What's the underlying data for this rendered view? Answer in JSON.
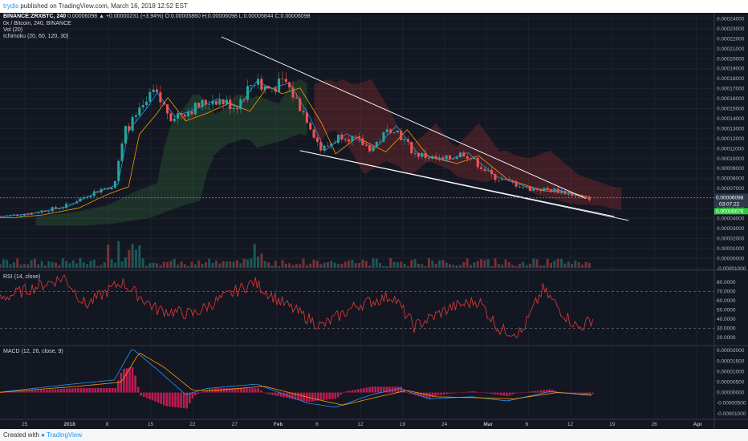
{
  "header": {
    "author": "trydis",
    "published_text": "published on TradingView.com, March 16, 2018 12:52 EST"
  },
  "legend": {
    "symbol": "BINANCE:ZRXBTC, 240",
    "ohlc_text": "0.00006098 ▲ +0.00000231 (+3.94%) O:0.00005860 H:0.00006098 L:0.00005844 C:0.00006098",
    "title": "0x / Bitcoin, 240, BINANCE",
    "vol": "Vol (20)",
    "ichimoku": "Ichimoku (20, 60, 120, 30)",
    "rsi": "RSI (14, close)",
    "macd": "MACD (12, 26, close, 9)"
  },
  "footer": {
    "created_with": "Created with",
    "brand": "TradingView"
  },
  "colors": {
    "background": "#131722",
    "candle_up": "#26a69a",
    "candle_down": "#ef5350",
    "rsi_line": "#e53935",
    "macd_line": "#2196f3",
    "signal_line": "#ff9800",
    "histogram": "#e91e63",
    "trendline": "#ffffff",
    "price_line": "#4caf50"
  },
  "chart_data": [
    {
      "type": "candlestick",
      "title": "0x / Bitcoin, 240, BINANCE",
      "x_ticks": [
        "25",
        "2018",
        "8",
        "15",
        "22",
        "27",
        "Feb",
        "6",
        "12",
        "19",
        "24",
        "Mar",
        "6",
        "12",
        "19",
        "26",
        "Apr"
      ],
      "y_ticks": [
        "0.00024000",
        "0.00023000",
        "0.00022000",
        "0.00021000",
        "0.00020000",
        "0.00019000",
        "0.00018000",
        "0.00017000",
        "0.00016000",
        "0.00015000",
        "0.00014000",
        "0.00013000",
        "0.00012000",
        "0.00011000",
        "0.00010000",
        "0.00009000",
        "0.00008000",
        "0.00007000",
        "0.00006000",
        "0.00005000",
        "0.00004000",
        "0.00003000",
        "0.00002000",
        "0.00001000",
        "0.00000000",
        "-0.00001000"
      ],
      "ylim": [
        -1.1e-05,
        0.000246
      ],
      "price_anchors": [
        {
          "t": 0,
          "p": 4.2e-05
        },
        {
          "t": 0.04,
          "p": 4.5e-05
        },
        {
          "t": 0.09,
          "p": 5.2e-05
        },
        {
          "t": 0.13,
          "p": 6.6e-05
        },
        {
          "t": 0.16,
          "p": 7.4e-05
        },
        {
          "t": 0.175,
          "p": 0.000128
        },
        {
          "t": 0.2,
          "p": 0.00015
        },
        {
          "t": 0.215,
          "p": 0.000166
        },
        {
          "t": 0.24,
          "p": 0.000142
        },
        {
          "t": 0.27,
          "p": 0.00015
        },
        {
          "t": 0.3,
          "p": 0.00016
        },
        {
          "t": 0.33,
          "p": 0.000152
        },
        {
          "t": 0.355,
          "p": 0.000178
        },
        {
          "t": 0.375,
          "p": 0.00017
        },
        {
          "t": 0.4,
          "p": 0.000176
        },
        {
          "t": 0.43,
          "p": 0.00014
        },
        {
          "t": 0.45,
          "p": 0.000108
        },
        {
          "t": 0.48,
          "p": 0.000125
        },
        {
          "t": 0.52,
          "p": 0.00011
        },
        {
          "t": 0.55,
          "p": 0.000133
        },
        {
          "t": 0.58,
          "p": 0.000105
        },
        {
          "t": 0.62,
          "p": 9.8e-05
        },
        {
          "t": 0.65,
          "p": 0.000106
        },
        {
          "t": 0.69,
          "p": 8.2e-05
        },
        {
          "t": 0.74,
          "p": 7e-05
        },
        {
          "t": 0.78,
          "p": 6.8e-05
        },
        {
          "t": 0.82,
          "p": 6e-05
        },
        {
          "t": 0.83,
          "p": 6.1e-05
        }
      ],
      "last_price": "0.00006098",
      "countdown": "03:07:22",
      "low_label": "0.00005678",
      "current_price": 6.098e-05,
      "trendline_upper": [
        {
          "t": 0.31,
          "p": 0.000222
        },
        {
          "t": 0.82,
          "p": 6e-05
        }
      ],
      "trendline_lower": [
        {
          "t": 0.42,
          "p": 0.000108
        },
        {
          "t": 0.86,
          "p": 4.2e-05
        }
      ],
      "trendline_lower_2": [
        {
          "t": 0.42,
          "p": 0.000108
        },
        {
          "t": 0.88,
          "p": 3.8e-05
        }
      ]
    },
    {
      "type": "line",
      "title": "RSI (14, close)",
      "y_ticks": [
        "80.0000",
        "70.0000",
        "60.0000",
        "50.0000",
        "40.0000",
        "30.0000",
        "20.0000"
      ],
      "ylim": [
        12,
        92
      ],
      "upper_band": 70,
      "lower_band": 30,
      "anchors": [
        {
          "t": 0,
          "p": 62
        },
        {
          "t": 0.09,
          "p": 85
        },
        {
          "t": 0.12,
          "p": 55
        },
        {
          "t": 0.17,
          "p": 80
        },
        {
          "t": 0.22,
          "p": 50
        },
        {
          "t": 0.27,
          "p": 45
        },
        {
          "t": 0.3,
          "p": 58
        },
        {
          "t": 0.355,
          "p": 80
        },
        {
          "t": 0.39,
          "p": 60
        },
        {
          "t": 0.45,
          "p": 32
        },
        {
          "t": 0.5,
          "p": 55
        },
        {
          "t": 0.55,
          "p": 65
        },
        {
          "t": 0.58,
          "p": 32
        },
        {
          "t": 0.63,
          "p": 52
        },
        {
          "t": 0.67,
          "p": 60
        },
        {
          "t": 0.7,
          "p": 28
        },
        {
          "t": 0.73,
          "p": 25
        },
        {
          "t": 0.76,
          "p": 72
        },
        {
          "t": 0.79,
          "p": 45
        },
        {
          "t": 0.81,
          "p": 30
        },
        {
          "t": 0.83,
          "p": 40
        }
      ]
    },
    {
      "type": "line",
      "title": "MACD (12, 26, close, 9)",
      "y_ticks": [
        "0.00002000",
        "0.00001500",
        "0.00001000",
        "0.00000500",
        "0.00000000",
        "-0.00000500",
        "-0.00001000"
      ],
      "ylim": [
        -1.2e-05,
        2.2e-05
      ],
      "series": [
        {
          "anchors": [
            {
              "t": 0,
              "p": 2e-07
            },
            {
              "t": 0.1,
              "p": 4e-06
            },
            {
              "t": 0.16,
              "p": 6e-06
            },
            {
              "t": 0.185,
              "p": 2.1e-05
            },
            {
              "t": 0.22,
              "p": 1.1e-05
            },
            {
              "t": 0.26,
              "p": -1e-06
            },
            {
              "t": 0.29,
              "p": 2e-06
            },
            {
              "t": 0.36,
              "p": 4e-06
            },
            {
              "t": 0.43,
              "p": -5e-06
            },
            {
              "t": 0.47,
              "p": -7e-06
            },
            {
              "t": 0.52,
              "p": -1e-06
            },
            {
              "t": 0.56,
              "p": 2e-06
            },
            {
              "t": 0.6,
              "p": -3e-06
            },
            {
              "t": 0.66,
              "p": -2e-06
            },
            {
              "t": 0.71,
              "p": -4e-06
            },
            {
              "t": 0.77,
              "p": 5e-07
            },
            {
              "t": 0.83,
              "p": -1.5e-06
            }
          ]
        },
        {
          "anchors": [
            {
              "t": 0,
              "p": 1e-07
            },
            {
              "t": 0.11,
              "p": 3e-06
            },
            {
              "t": 0.17,
              "p": 5e-06
            },
            {
              "t": 0.195,
              "p": 1.9e-05
            },
            {
              "t": 0.23,
              "p": 1.2e-05
            },
            {
              "t": 0.27,
              "p": 1e-06
            },
            {
              "t": 0.3,
              "p": 1e-06
            },
            {
              "t": 0.37,
              "p": 3e-06
            },
            {
              "t": 0.44,
              "p": -3e-06
            },
            {
              "t": 0.48,
              "p": -6e-06
            },
            {
              "t": 0.53,
              "p": -2e-06
            },
            {
              "t": 0.57,
              "p": 1e-06
            },
            {
              "t": 0.61,
              "p": -2e-06
            },
            {
              "t": 0.67,
              "p": -2.5e-06
            },
            {
              "t": 0.72,
              "p": -3e-06
            },
            {
              "t": 0.78,
              "p": 0
            },
            {
              "t": 0.83,
              "p": -1e-06
            }
          ]
        }
      ]
    }
  ]
}
